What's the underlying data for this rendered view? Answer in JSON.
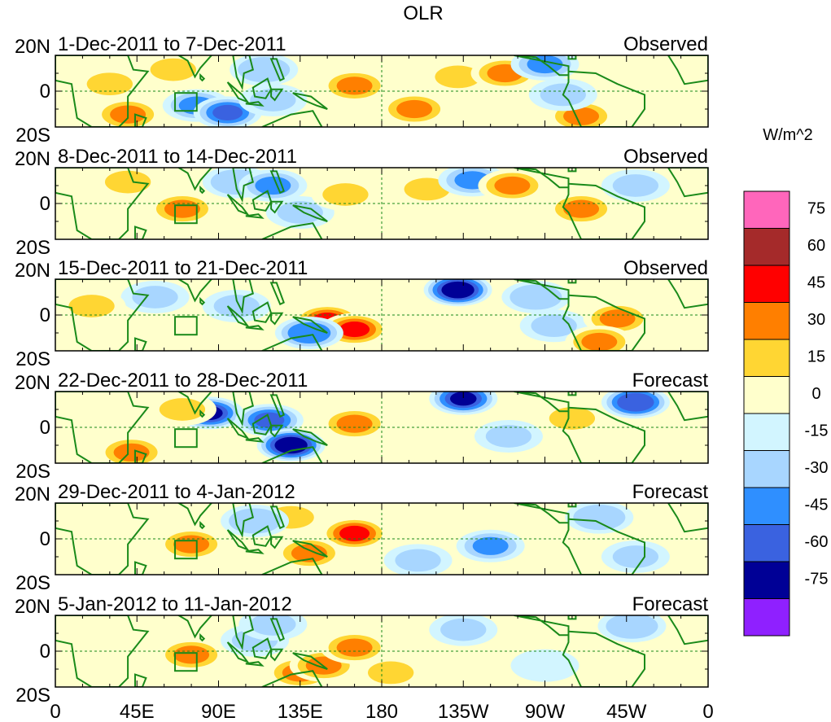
{
  "chart_data": {
    "type": "heatmap",
    "title": "OLR",
    "colorbar": {
      "label": "W/m^2",
      "tick_labels": [
        "75",
        "60",
        "45",
        "30",
        "15",
        "0",
        "-15",
        "-30",
        "-45",
        "-60",
        "-75"
      ],
      "colors": [
        "#ff66bb",
        "#a52a2a",
        "#ff0000",
        "#ff7f00",
        "#ffd633",
        "#ffffcc",
        "#d2f5ff",
        "#a8d6ff",
        "#2f8fff",
        "#3a62e0",
        "#000096",
        "#8f20ff"
      ]
    },
    "lon_ticks": [
      "0",
      "45E",
      "90E",
      "135E",
      "180",
      "135W",
      "90W",
      "45W",
      "0"
    ],
    "lat_ticks": [
      "20N",
      "0",
      "20S"
    ],
    "panels": [
      {
        "period": "1-Dec-2011 to 7-Dec-2011",
        "status": "Observed",
        "anomalies": [
          {
            "lon": 30,
            "lat": 4,
            "value": 20
          },
          {
            "lon": 40,
            "lat": -13,
            "value": 38
          },
          {
            "lon": 65,
            "lat": 12,
            "value": 22
          },
          {
            "lon": 78,
            "lat": -8,
            "value": -38
          },
          {
            "lon": 95,
            "lat": -12,
            "value": -55
          },
          {
            "lon": 120,
            "lat": -5,
            "value": -20
          },
          {
            "lon": 115,
            "lat": 12,
            "value": -30
          },
          {
            "lon": 165,
            "lat": 3,
            "value": 38
          },
          {
            "lon": 198,
            "lat": -10,
            "value": 30
          },
          {
            "lon": 222,
            "lat": 8,
            "value": 25
          },
          {
            "lon": 248,
            "lat": 10,
            "value": 30
          },
          {
            "lon": 270,
            "lat": 15,
            "value": -35
          },
          {
            "lon": 290,
            "lat": -14,
            "value": 35
          },
          {
            "lon": 280,
            "lat": -2,
            "value": -20
          }
        ]
      },
      {
        "period": "8-Dec-2011 to 14-Dec-2011",
        "status": "Observed",
        "anomalies": [
          {
            "lon": 70,
            "lat": -3,
            "value": 35
          },
          {
            "lon": 100,
            "lat": 12,
            "value": -30
          },
          {
            "lon": 120,
            "lat": 10,
            "value": -38
          },
          {
            "lon": 135,
            "lat": -5,
            "value": -22
          },
          {
            "lon": 160,
            "lat": 5,
            "value": 20
          },
          {
            "lon": 205,
            "lat": 8,
            "value": 22
          },
          {
            "lon": 230,
            "lat": 13,
            "value": -35
          },
          {
            "lon": 252,
            "lat": 10,
            "value": 30
          },
          {
            "lon": 290,
            "lat": -3,
            "value": 32
          },
          {
            "lon": 320,
            "lat": 10,
            "value": -20
          },
          {
            "lon": 40,
            "lat": 12,
            "value": 18
          }
        ]
      },
      {
        "period": "15-Dec-2011 to 21-Dec-2011",
        "status": "Observed",
        "anomalies": [
          {
            "lon": 150,
            "lat": -3,
            "value": 50
          },
          {
            "lon": 165,
            "lat": -8,
            "value": 48
          },
          {
            "lon": 140,
            "lat": -10,
            "value": -45
          },
          {
            "lon": 222,
            "lat": 14,
            "value": -75
          },
          {
            "lon": 265,
            "lat": 10,
            "value": -30
          },
          {
            "lon": 275,
            "lat": -6,
            "value": -25
          },
          {
            "lon": 310,
            "lat": -2,
            "value": 30
          },
          {
            "lon": 300,
            "lat": -15,
            "value": 35
          },
          {
            "lon": 55,
            "lat": 10,
            "value": -25
          },
          {
            "lon": 100,
            "lat": 5,
            "value": -25
          },
          {
            "lon": 20,
            "lat": 5,
            "value": 15
          }
        ]
      },
      {
        "period": "22-Dec-2011 to 28-Dec-2011",
        "status": "Forecast",
        "anomalies": [
          {
            "lon": 85,
            "lat": 8,
            "value": -62
          },
          {
            "lon": 118,
            "lat": 4,
            "value": -50
          },
          {
            "lon": 130,
            "lat": -10,
            "value": -75
          },
          {
            "lon": 165,
            "lat": 2,
            "value": 35
          },
          {
            "lon": 225,
            "lat": 16,
            "value": -65
          },
          {
            "lon": 320,
            "lat": 14,
            "value": -60
          },
          {
            "lon": 42,
            "lat": -14,
            "value": 32
          },
          {
            "lon": 70,
            "lat": 10,
            "value": 20
          },
          {
            "lon": 285,
            "lat": 5,
            "value": 18
          },
          {
            "lon": 250,
            "lat": -5,
            "value": -20
          }
        ]
      },
      {
        "period": "29-Dec-2011 to 4-Jan-2012",
        "status": "Forecast",
        "anomalies": [
          {
            "lon": 75,
            "lat": -3,
            "value": 38
          },
          {
            "lon": 130,
            "lat": 12,
            "value": 25
          },
          {
            "lon": 165,
            "lat": 3,
            "value": 45
          },
          {
            "lon": 140,
            "lat": -8,
            "value": 30
          },
          {
            "lon": 110,
            "lat": 10,
            "value": -30
          },
          {
            "lon": 240,
            "lat": -4,
            "value": -35
          },
          {
            "lon": 300,
            "lat": 12,
            "value": -30
          },
          {
            "lon": 320,
            "lat": -10,
            "value": -22
          },
          {
            "lon": 200,
            "lat": -12,
            "value": -20
          }
        ]
      },
      {
        "period": "5-Jan-2012 to 11-Jan-2012",
        "status": "Forecast",
        "anomalies": [
          {
            "lon": 75,
            "lat": -2,
            "value": 32
          },
          {
            "lon": 135,
            "lat": -12,
            "value": 40
          },
          {
            "lon": 148,
            "lat": -8,
            "value": 32
          },
          {
            "lon": 165,
            "lat": 2,
            "value": 38
          },
          {
            "lon": 110,
            "lat": 6,
            "value": -28
          },
          {
            "lon": 120,
            "lat": 15,
            "value": -20
          },
          {
            "lon": 318,
            "lat": 14,
            "value": -30
          },
          {
            "lon": 225,
            "lat": 12,
            "value": -20
          },
          {
            "lon": 270,
            "lat": -8,
            "value": -15
          },
          {
            "lon": 185,
            "lat": -12,
            "value": 15
          }
        ]
      }
    ]
  }
}
